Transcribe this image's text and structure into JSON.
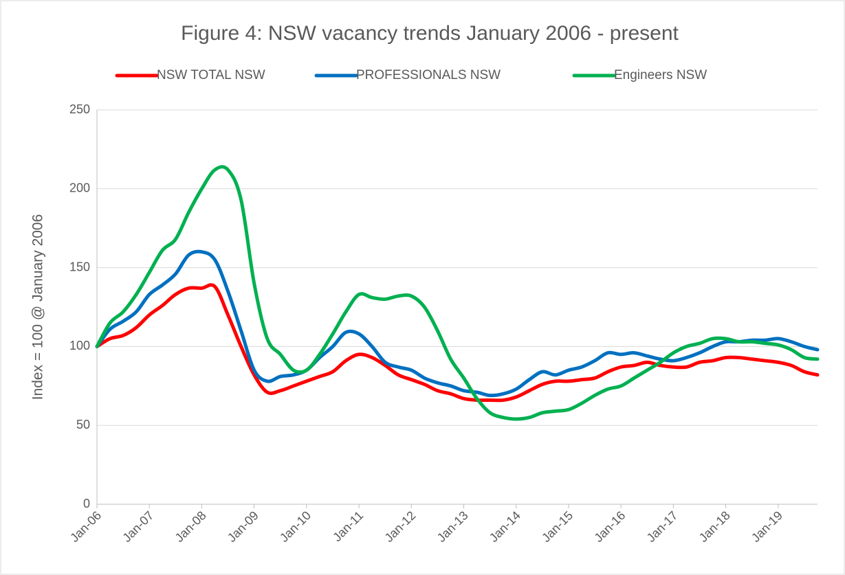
{
  "chart_data": {
    "type": "line",
    "title": "Figure 4: NSW vacancy trends January 2006 - present",
    "y_label": "Index = 100 @ January 2006",
    "categories": [
      "Jan-06",
      null,
      null,
      null,
      "Jan-07",
      null,
      null,
      null,
      "Jan-08",
      null,
      null,
      null,
      "Jan-09",
      null,
      null,
      null,
      "Jan-10",
      null,
      null,
      null,
      "Jan-11",
      null,
      null,
      null,
      "Jan-12",
      null,
      null,
      null,
      "Jan-13",
      null,
      null,
      null,
      "Jan-14",
      null,
      null,
      null,
      "Jan-15",
      null,
      null,
      null,
      "Jan-16",
      null,
      null,
      null,
      "Jan-17",
      null,
      null,
      null,
      "Jan-18",
      null,
      null,
      null,
      "Jan-19",
      null,
      null,
      null
    ],
    "series": [
      {
        "name": "NSW TOTAL NSW",
        "color": "#ff0000",
        "values": [
          100,
          105,
          107,
          112,
          120,
          126,
          133,
          137,
          137,
          138,
          120,
          100,
          82,
          71,
          72,
          75,
          78,
          81,
          84,
          91,
          95,
          93,
          88,
          82,
          79,
          76,
          72,
          70,
          67,
          66,
          66,
          66,
          68,
          72,
          76,
          78,
          78,
          79,
          80,
          84,
          87,
          88,
          90,
          88,
          87,
          87,
          90,
          91,
          93,
          93,
          92,
          91,
          90,
          88,
          84,
          82
        ]
      },
      {
        "name": "PROFESSIONALS NSW",
        "color": "#0070c0",
        "values": [
          100,
          111,
          116,
          122,
          133,
          139,
          146,
          158,
          160,
          155,
          135,
          110,
          85,
          78,
          81,
          82,
          85,
          93,
          100,
          109,
          108,
          100,
          90,
          87,
          85,
          80,
          77,
          75,
          72,
          71,
          69,
          70,
          73,
          79,
          84,
          82,
          85,
          87,
          91,
          96,
          95,
          96,
          94,
          92,
          91,
          93,
          96,
          100,
          103,
          103,
          104,
          104,
          105,
          103,
          100,
          98
        ]
      },
      {
        "name": "Engineers NSW",
        "color": "#00b050",
        "values": [
          100,
          115,
          122,
          133,
          147,
          161,
          168,
          185,
          200,
          212,
          212,
          193,
          140,
          105,
          95,
          85,
          85,
          95,
          108,
          122,
          133,
          131,
          130,
          132,
          132,
          125,
          110,
          92,
          80,
          67,
          58,
          55,
          54,
          55,
          58,
          59,
          60,
          64,
          69,
          73,
          75,
          80,
          85,
          90,
          96,
          100,
          102,
          105,
          105,
          103,
          103,
          102,
          101,
          98,
          93,
          92
        ]
      }
    ],
    "ylim": [
      0,
      250
    ],
    "yticks": [
      0,
      50,
      100,
      150,
      200,
      250
    ],
    "grid": true,
    "legend": "top"
  }
}
